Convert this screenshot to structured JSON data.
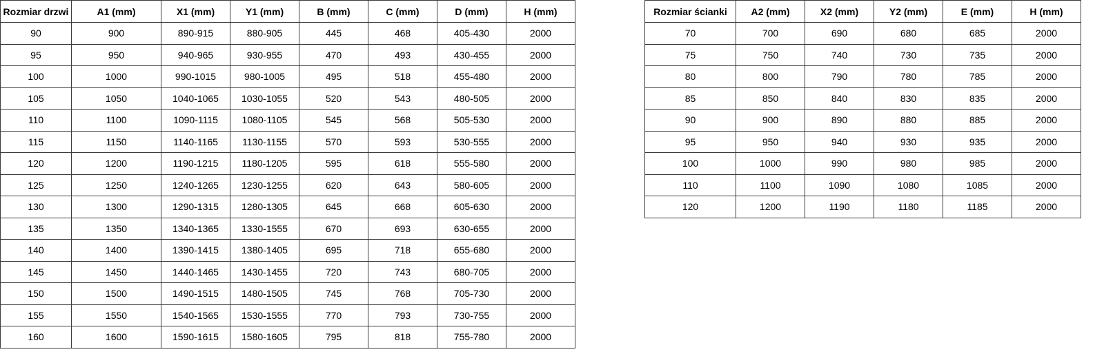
{
  "door_table": {
    "headers": [
      "Rozmiar drzwi",
      "A1 (mm)",
      "X1 (mm)",
      "Y1 (mm)",
      "B (mm)",
      "C (mm)",
      "D (mm)",
      "H (mm)"
    ],
    "rows": [
      [
        "90",
        "900",
        "890-915",
        "880-905",
        "445",
        "468",
        "405-430",
        "2000"
      ],
      [
        "95",
        "950",
        "940-965",
        "930-955",
        "470",
        "493",
        "430-455",
        "2000"
      ],
      [
        "100",
        "1000",
        "990-1015",
        "980-1005",
        "495",
        "518",
        "455-480",
        "2000"
      ],
      [
        "105",
        "1050",
        "1040-1065",
        "1030-1055",
        "520",
        "543",
        "480-505",
        "2000"
      ],
      [
        "110",
        "1100",
        "1090-1115",
        "1080-1105",
        "545",
        "568",
        "505-530",
        "2000"
      ],
      [
        "115",
        "1150",
        "1140-1165",
        "1130-1155",
        "570",
        "593",
        "530-555",
        "2000"
      ],
      [
        "120",
        "1200",
        "1190-1215",
        "1180-1205",
        "595",
        "618",
        "555-580",
        "2000"
      ],
      [
        "125",
        "1250",
        "1240-1265",
        "1230-1255",
        "620",
        "643",
        "580-605",
        "2000"
      ],
      [
        "130",
        "1300",
        "1290-1315",
        "1280-1305",
        "645",
        "668",
        "605-630",
        "2000"
      ],
      [
        "135",
        "1350",
        "1340-1365",
        "1330-1555",
        "670",
        "693",
        "630-655",
        "2000"
      ],
      [
        "140",
        "1400",
        "1390-1415",
        "1380-1405",
        "695",
        "718",
        "655-680",
        "2000"
      ],
      [
        "145",
        "1450",
        "1440-1465",
        "1430-1455",
        "720",
        "743",
        "680-705",
        "2000"
      ],
      [
        "150",
        "1500",
        "1490-1515",
        "1480-1505",
        "745",
        "768",
        "705-730",
        "2000"
      ],
      [
        "155",
        "1550",
        "1540-1565",
        "1530-1555",
        "770",
        "793",
        "730-755",
        "2000"
      ],
      [
        "160",
        "1600",
        "1590-1615",
        "1580-1605",
        "795",
        "818",
        "755-780",
        "2000"
      ]
    ]
  },
  "wall_table": {
    "headers": [
      "Rozmiar ścianki",
      "A2 (mm)",
      "X2 (mm)",
      "Y2 (mm)",
      "E (mm)",
      "H (mm)"
    ],
    "rows": [
      [
        "70",
        "700",
        "690",
        "680",
        "685",
        "2000"
      ],
      [
        "75",
        "750",
        "740",
        "730",
        "735",
        "2000"
      ],
      [
        "80",
        "800",
        "790",
        "780",
        "785",
        "2000"
      ],
      [
        "85",
        "850",
        "840",
        "830",
        "835",
        "2000"
      ],
      [
        "90",
        "900",
        "890",
        "880",
        "885",
        "2000"
      ],
      [
        "95",
        "950",
        "940",
        "930",
        "935",
        "2000"
      ],
      [
        "100",
        "1000",
        "990",
        "980",
        "985",
        "2000"
      ],
      [
        "110",
        "1100",
        "1090",
        "1080",
        "1085",
        "2000"
      ],
      [
        "120",
        "1200",
        "1190",
        "1180",
        "1185",
        "2000"
      ]
    ]
  }
}
